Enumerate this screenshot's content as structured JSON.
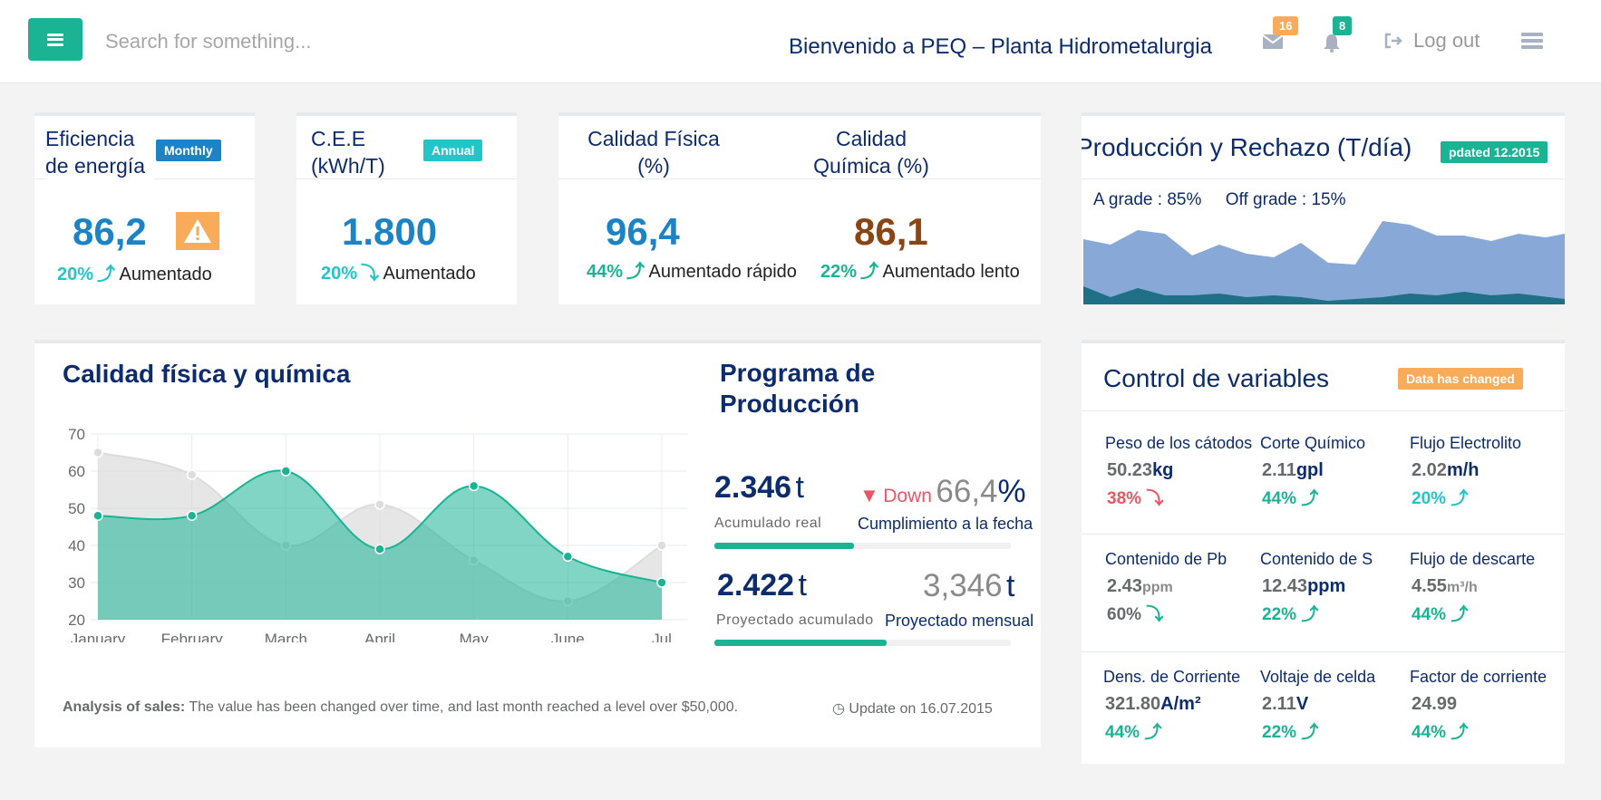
{
  "colors": {
    "green": "#1ab394",
    "teal": "#23c6c8",
    "blue": "#1c84c6",
    "orange": "#f8ac59",
    "red": "#ed5565",
    "navy": "#0d2c6e",
    "brown": "#8b4513"
  },
  "header": {
    "search_placeholder": "Search for something...",
    "welcome": "Bienvenido a PEQ – Planta Hidrometalurgia",
    "mail_count": "16",
    "alert_count": "8",
    "logout": "Log out"
  },
  "kpi1": {
    "title": "Eficiencia de energía",
    "badge": "Monthly",
    "value": "86,2",
    "pct": "20%",
    "arrow": "⤴",
    "trend": "Aumentado"
  },
  "kpi2": {
    "title": "C.E.E (kWh/T)",
    "badge": "Annual",
    "value": "1.800",
    "pct": "20%",
    "arrow": "⤵",
    "trend": "Aumentado"
  },
  "kpi3": {
    "title_a": "Calidad Física (%)",
    "title_b": "Calidad Química (%)",
    "value_a": "96,4",
    "pct_a": "44%",
    "arrow_a": "⤴",
    "trend_a": "Aumentado rápido",
    "value_b": "86,1",
    "pct_b": "22%",
    "arrow_b": "⤴",
    "trend_b": "Aumentado lento"
  },
  "production": {
    "title": "Producción y Rechazo (T/día)",
    "badge": "pdated 12.2015",
    "a_grade": "A grade  : 85%",
    "off_grade": "Off grade : 15%"
  },
  "quality_panel": {
    "title": "Calidad física y química",
    "analysis_label": "Analysis of sales:",
    "analysis_text": " The value has been changed over time, and last month reached a level over $50,000.",
    "update": "Update on 16.07.2015"
  },
  "chart_data": {
    "type": "area",
    "categories": [
      "January",
      "February",
      "March",
      "April",
      "May",
      "June",
      "Jul"
    ],
    "ylim": [
      20,
      70
    ],
    "yticks": [
      70,
      60,
      50,
      40,
      30,
      20
    ],
    "series": [
      {
        "values": [
          65,
          59,
          40,
          51,
          36,
          25,
          40
        ],
        "color": "#dedede"
      },
      {
        "values": [
          48,
          48,
          60,
          39,
          56,
          37,
          30
        ],
        "color": "#1ab394"
      }
    ],
    "grid": true
  },
  "program": {
    "title": "Programa de Producción",
    "acum_value": "2.346",
    "acum_unit": "t",
    "acum_label": "Acumulado real",
    "down_text": "Down",
    "down_pct": "66,4",
    "pct_sign": "%",
    "cumpl_label": "Cumplimiento a la fecha",
    "proj_value": "2.422",
    "proj_unit": "t",
    "proj_label": "Proyectado acumulado",
    "month_value": "3,346",
    "month_unit": "t",
    "month_label": "Proyectado mensual",
    "bar1_fraction": 0.47,
    "bar2_fraction": 0.58
  },
  "variables": {
    "title": "Control de variables",
    "badge": "Data has changed",
    "items": [
      {
        "label": "Peso de los cátodos",
        "value": "50.23",
        "unit": "kg",
        "pct": "38%",
        "arrow": "⤵",
        "dir": "down"
      },
      {
        "label": "Corte Químico",
        "value": "2.11",
        "unit": "gpl",
        "pct": "44%",
        "arrow": "⤴",
        "dir": "up"
      },
      {
        "label": "Flujo Electrolito",
        "value": "2.02",
        "unit": "m/h",
        "pct": "20%",
        "arrow": "⤴",
        "dir": "up-teal"
      },
      {
        "label": "Contenido de Pb",
        "value": "2.43",
        "unit": "ppm",
        "pct": "60%",
        "arrow": "⤵",
        "dir": "neutral"
      },
      {
        "label": "Contenido de S",
        "value": "12.43",
        "unit": "ppm",
        "pct": "22%",
        "arrow": "⤴",
        "dir": "up"
      },
      {
        "label": "Flujo de descarte",
        "value": "4.55",
        "unit": "m³/h",
        "pct": "44%",
        "arrow": "⤴",
        "dir": "up"
      },
      {
        "label": "Dens. de Corriente",
        "value": "321.80",
        "unit": "A/m²",
        "pct": "44%",
        "arrow": "⤴",
        "dir": "up"
      },
      {
        "label": "Voltaje de celda",
        "value": "2.11",
        "unit": "V",
        "pct": "22%",
        "arrow": "⤴",
        "dir": "up"
      },
      {
        "label": "Factor de corriente",
        "value": "24.99",
        "unit": "",
        "pct": "44%",
        "arrow": "⤴",
        "dir": "up"
      }
    ]
  }
}
